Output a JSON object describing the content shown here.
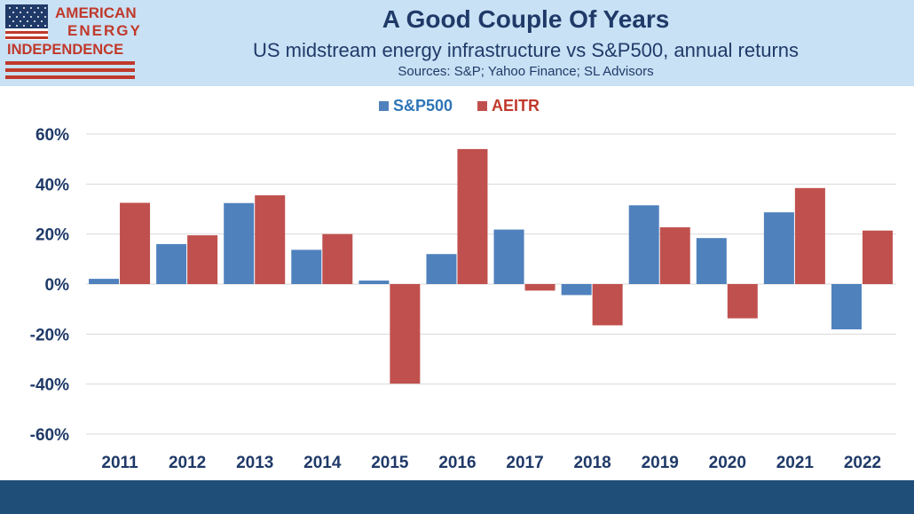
{
  "header": {
    "title": "A Good Couple Of Years",
    "subtitle": "US midstream energy infrastructure vs S&P500, annual returns",
    "sources": "Sources: S&P; Yahoo Finance; SL Advisors"
  },
  "logo": {
    "line1": "AMERICAN",
    "line2": "ENERGY",
    "line3": "INDEPENDENCE",
    "icon": "us-flag-icon"
  },
  "colors": {
    "header_bg": "#c9e1f5",
    "footer_bg": "#1f4e79",
    "sp500": "#4f81bd",
    "aeitr": "#c0504d",
    "logo_red": "#c0392b"
  },
  "chart_data": {
    "type": "bar",
    "title": "",
    "xlabel": "",
    "ylabel": "",
    "categories": [
      "2011",
      "2012",
      "2013",
      "2014",
      "2015",
      "2016",
      "2017",
      "2018",
      "2019",
      "2020",
      "2021",
      "2022"
    ],
    "series": [
      {
        "name": "S&P500",
        "color": "#4f81bd",
        "values": [
          2.1,
          16.0,
          32.4,
          13.7,
          1.4,
          12.0,
          21.8,
          -4.4,
          31.5,
          18.4,
          28.7,
          -18.1
        ]
      },
      {
        "name": "AEITR",
        "color": "#c0504d",
        "values": [
          32.5,
          19.5,
          35.5,
          20.0,
          -39.8,
          54.0,
          -2.6,
          -16.5,
          22.7,
          -13.7,
          38.4,
          21.4
        ]
      }
    ],
    "ylim": [
      -60,
      60
    ],
    "yticks": [
      -60,
      -40,
      -20,
      0,
      20,
      40,
      60
    ],
    "ytick_labels": [
      "-60%",
      "-40%",
      "-20%",
      "0%",
      "20%",
      "40%",
      "60%"
    ],
    "grid": true,
    "legend": "top-center"
  }
}
